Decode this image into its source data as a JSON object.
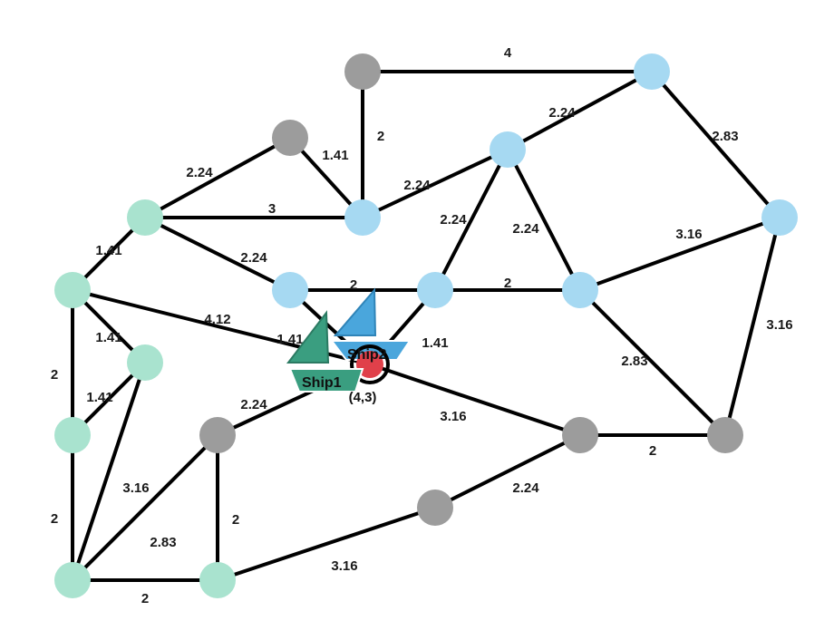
{
  "colors": {
    "teal": "#a9e3cf",
    "blue": "#a6d9f2",
    "gray": "#9c9c9c",
    "red": "#e0404a",
    "ship1": "#3a9e80",
    "ship2": "#4aa6dc"
  },
  "nodes": [
    {
      "id": "g1",
      "c": "gray"
    },
    {
      "id": "b1",
      "c": "blue"
    },
    {
      "id": "g2",
      "c": "gray"
    },
    {
      "id": "b2",
      "c": "blue"
    },
    {
      "id": "t1",
      "c": "teal"
    },
    {
      "id": "b3",
      "c": "blue"
    },
    {
      "id": "b4",
      "c": "blue"
    },
    {
      "id": "t2",
      "c": "teal"
    },
    {
      "id": "b5",
      "c": "blue"
    },
    {
      "id": "b6",
      "c": "blue"
    },
    {
      "id": "b7",
      "c": "blue"
    },
    {
      "id": "t3",
      "c": "teal"
    },
    {
      "id": "c",
      "c": "red"
    },
    {
      "id": "t4",
      "c": "teal"
    },
    {
      "id": "g3",
      "c": "gray"
    },
    {
      "id": "g4",
      "c": "gray"
    },
    {
      "id": "g5",
      "c": "gray"
    },
    {
      "id": "g6",
      "c": "gray"
    },
    {
      "id": "t5",
      "c": "teal"
    },
    {
      "id": "t6",
      "c": "teal"
    }
  ],
  "edges": [
    {
      "a": "g1",
      "b": "b1",
      "w": "4"
    },
    {
      "a": "g1",
      "b": "b3",
      "w": "2"
    },
    {
      "a": "b2",
      "b": "b1",
      "w": "2.24"
    },
    {
      "a": "b1",
      "b": "b4",
      "w": "2.83"
    },
    {
      "a": "g2",
      "b": "t1",
      "w": "2.24"
    },
    {
      "a": "g2",
      "b": "b3",
      "w": "1.41"
    },
    {
      "a": "t1",
      "b": "b3",
      "w": "3"
    },
    {
      "a": "b3",
      "b": "b2",
      "w": "2.24"
    },
    {
      "a": "t1",
      "b": "b5",
      "w": "2.24"
    },
    {
      "a": "b2",
      "b": "b6",
      "w": "2.24"
    },
    {
      "a": "b2",
      "b": "b7",
      "w": "2.24"
    },
    {
      "a": "b7",
      "b": "b4",
      "w": "3.16"
    },
    {
      "a": "t1",
      "b": "t2",
      "w": "1.41"
    },
    {
      "a": "b5",
      "b": "b6",
      "w": "2"
    },
    {
      "a": "b6",
      "b": "b7",
      "w": "2"
    },
    {
      "a": "t2",
      "b": "c",
      "w": "4.12"
    },
    {
      "a": "t2",
      "b": "t3",
      "w": "1.41"
    },
    {
      "a": "b5",
      "b": "c",
      "w": "1.41"
    },
    {
      "a": "b6",
      "b": "c",
      "w": "1.41"
    },
    {
      "a": "b4",
      "b": "g6",
      "w": "3.16"
    },
    {
      "a": "b7",
      "b": "g6",
      "w": "2.83"
    },
    {
      "a": "t2",
      "b": "t4",
      "w": "2"
    },
    {
      "a": "t3",
      "b": "t4",
      "w": "1.41"
    },
    {
      "a": "c",
      "b": "g3",
      "w": "2.24"
    },
    {
      "a": "c",
      "b": "g4",
      "w": "3.16"
    },
    {
      "a": "g4",
      "b": "g6",
      "w": "2"
    },
    {
      "a": "t3",
      "b": "t5",
      "w": "3.16"
    },
    {
      "a": "g3",
      "b": "t5",
      "w": "2.83"
    },
    {
      "a": "g3",
      "b": "t6",
      "w": "2"
    },
    {
      "a": "t4",
      "b": "t5",
      "w": "2"
    },
    {
      "a": "g4",
      "b": "g5",
      "w": "2.24"
    },
    {
      "a": "g5",
      "b": "t6",
      "w": "3.16"
    },
    {
      "a": "t5",
      "b": "t6",
      "w": "2"
    }
  ],
  "ships": [
    {
      "id": "ship1",
      "name": "Ship1"
    },
    {
      "id": "ship2",
      "name": "Ship2"
    }
  ],
  "coord_label": "(4,3)"
}
